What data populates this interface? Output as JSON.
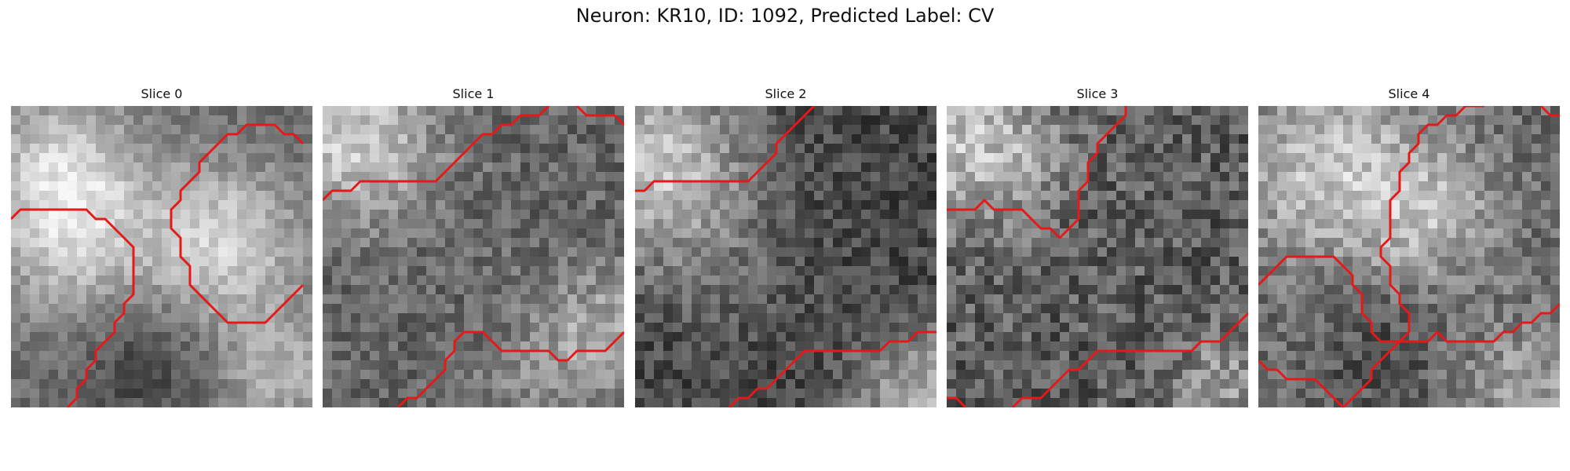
{
  "figure": {
    "title": "Neuron: KR10, ID: 1092, Predicted Label: CV"
  },
  "colors": {
    "boundary": "#e61919",
    "background": "#ffffff"
  },
  "panels": [
    {
      "title": "Slice 0"
    },
    {
      "title": "Slice 1"
    },
    {
      "title": "Slice 2"
    },
    {
      "title": "Slice 3"
    },
    {
      "title": "Slice 4"
    }
  ]
}
